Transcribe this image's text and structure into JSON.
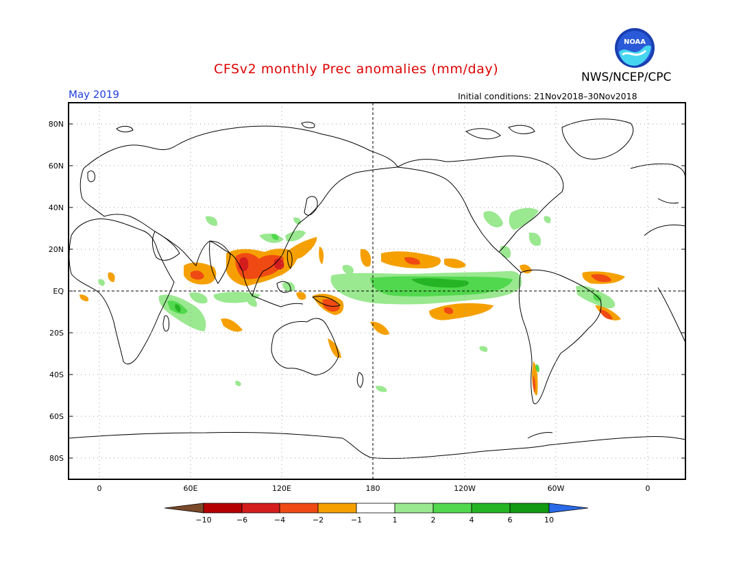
{
  "header": {
    "title": "CFSv2 monthly Prec anomalies (mm/day)",
    "agency": "NWS/NCEP/CPC",
    "valid_month": "May 2019",
    "initial_conditions": "Initial conditions: 21Nov2018–30Nov2018",
    "logo_text": "NOAA"
  },
  "map": {
    "lat_labels": [
      "80N",
      "60N",
      "40N",
      "20N",
      "EQ",
      "20S",
      "40S",
      "60S",
      "80S"
    ],
    "lon_labels": [
      "0",
      "60E",
      "120E",
      "180",
      "120W",
      "60W",
      "0"
    ]
  },
  "colorbar": {
    "ticks": [
      "−10",
      "−6",
      "−4",
      "−2",
      "−1",
      "1",
      "2",
      "4",
      "6",
      "10"
    ],
    "colors": {
      "below_min": "#7a4a2a",
      "dry_6_10": "#b40000",
      "dry_4_6": "#d41e1e",
      "dry_2_4": "#f04a14",
      "dry_1_2": "#f5a000",
      "neutral": "#ffffff",
      "wet_1_2": "#9ae890",
      "wet_2_4": "#52d84e",
      "wet_4_6": "#24b424",
      "wet_6_10": "#129a12",
      "above_max": "#2a6ae8"
    }
  }
}
